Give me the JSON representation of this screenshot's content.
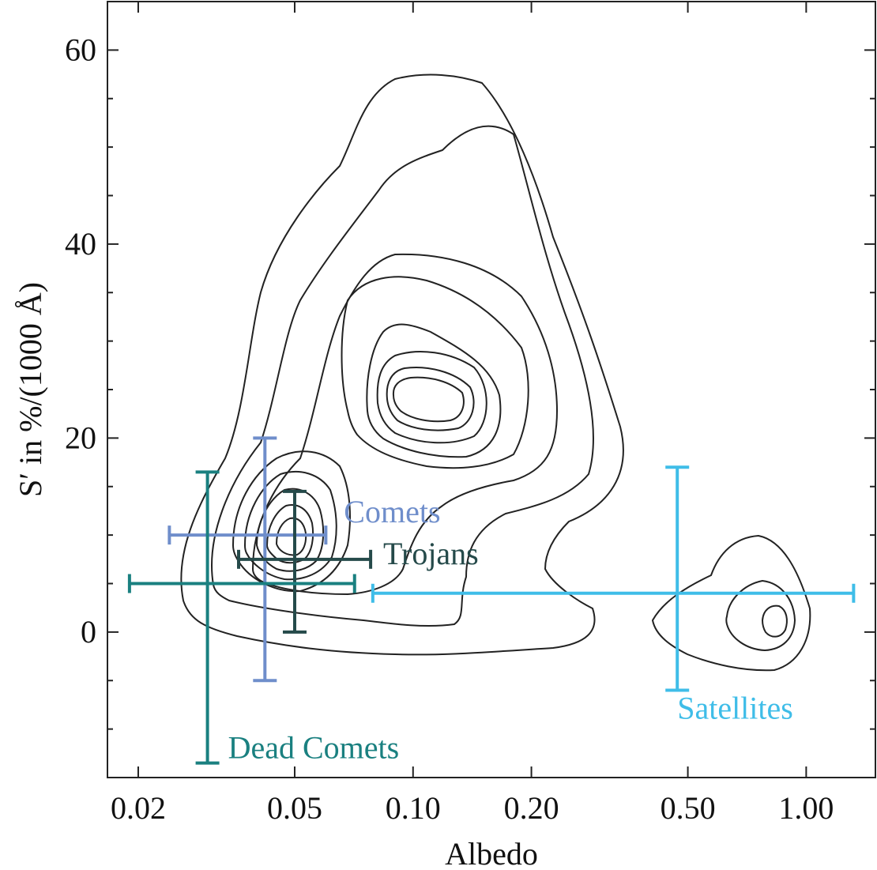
{
  "chart_data": {
    "type": "scatter",
    "xlabel": "Albedo",
    "ylabel": "S′ in %/(1000 Å)",
    "xscale": "log",
    "xlim": [
      0.0167,
      1.5
    ],
    "ylim": [
      -15,
      65
    ],
    "x_ticks": [
      0.02,
      0.05,
      0.1,
      0.2,
      0.5,
      1.0
    ],
    "x_tick_labels": [
      "0.02",
      "0.05",
      "0.10",
      "0.20",
      "0.50",
      "1.00"
    ],
    "y_ticks": [
      0,
      20,
      40,
      60
    ],
    "y_tick_labels": [
      "0",
      "20",
      "40",
      "60"
    ],
    "y_minor_ticks": [
      -10,
      -5,
      5,
      10,
      15,
      25,
      30,
      35,
      45,
      50,
      55,
      65
    ],
    "grid": false,
    "legend": "none",
    "series": [
      {
        "name": "Comets",
        "color": "#6f8ecb",
        "x": 0.042,
        "x_err_low": 0.024,
        "x_err_high": 0.06,
        "y": 10,
        "y_err_low": -5,
        "y_err_high": 20
      },
      {
        "name": "Trojans",
        "color": "#254a4a",
        "x": 0.05,
        "x_err_low": 0.036,
        "x_err_high": 0.078,
        "y": 7.5,
        "y_err_low": 0,
        "y_err_high": 14.5
      },
      {
        "name": "Dead Comets",
        "color": "#1a8080",
        "x": 0.03,
        "x_err_low": 0.019,
        "x_err_high": 0.071,
        "y": 5,
        "y_err_low": -13.5,
        "y_err_high": 16.5
      },
      {
        "name": "Satellites",
        "color": "#3fbde8",
        "x": 0.47,
        "x_err_low": 0.079,
        "x_err_high": 1.32,
        "y": 4,
        "y_err_low": -6,
        "y_err_high": 17
      }
    ],
    "annotations": [
      "Comets",
      "Trojans",
      "Dead Comets",
      "Satellites"
    ],
    "contour_color": "#222222"
  }
}
